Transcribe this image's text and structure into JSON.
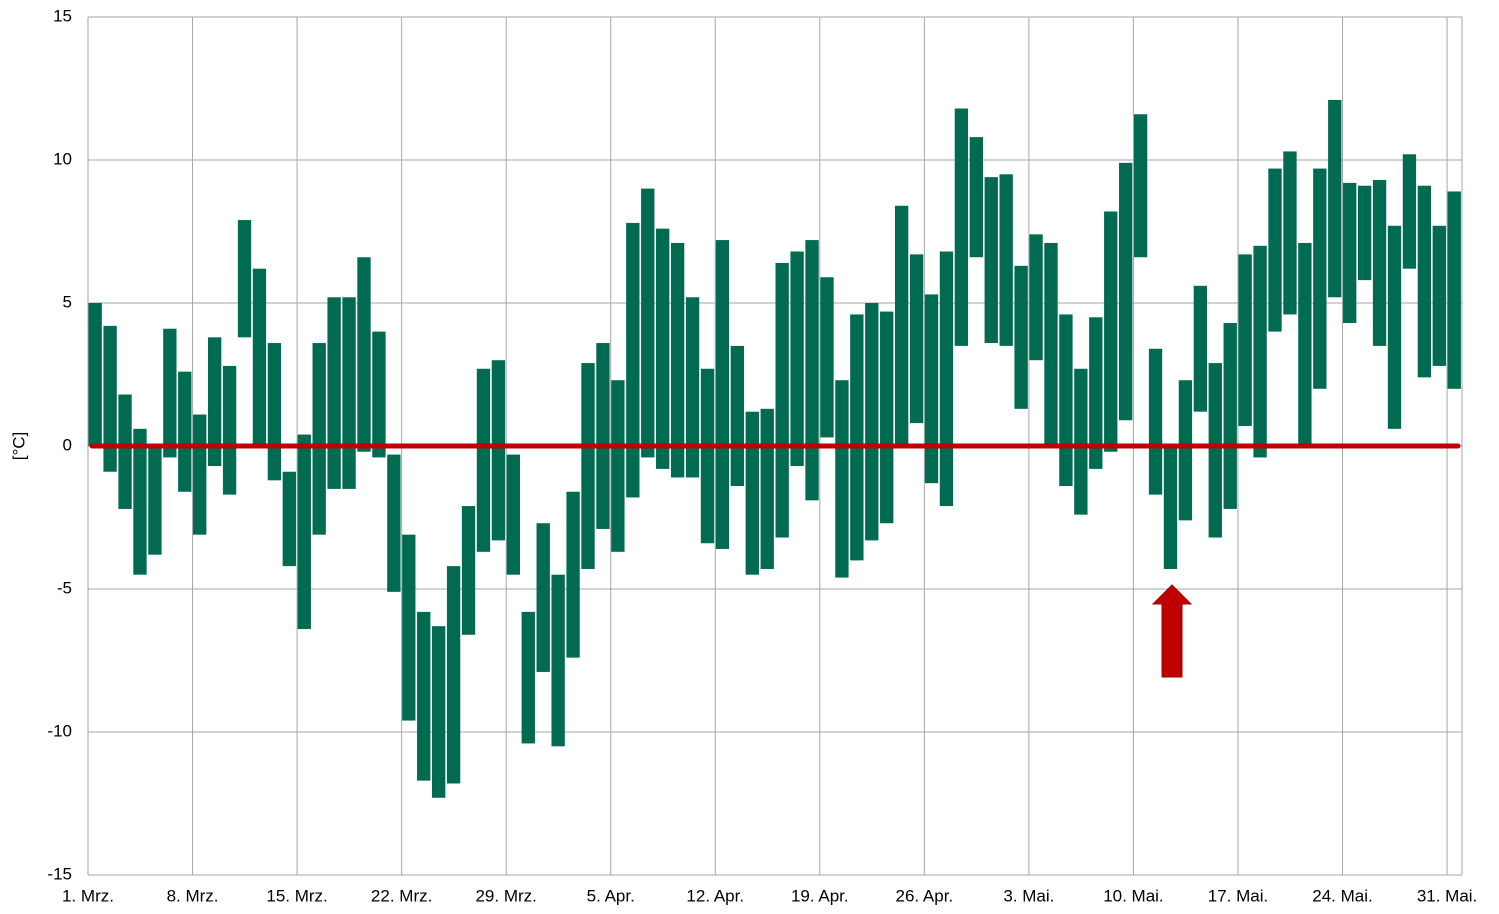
{
  "chart_data": {
    "type": "floating-bar",
    "y_label": "[°C]",
    "categories": [
      "1. Mrz.",
      null,
      null,
      null,
      null,
      null,
      null,
      "8. Mrz.",
      null,
      null,
      null,
      null,
      null,
      null,
      "15. Mrz.",
      null,
      null,
      null,
      null,
      null,
      null,
      "22. Mrz.",
      null,
      null,
      null,
      null,
      null,
      null,
      "29. Mrz.",
      null,
      null,
      null,
      null,
      null,
      null,
      "5. Apr.",
      null,
      null,
      null,
      null,
      null,
      null,
      "12. Apr.",
      null,
      null,
      null,
      null,
      null,
      null,
      "19. Apr.",
      null,
      null,
      null,
      null,
      null,
      null,
      "26. Apr.",
      null,
      null,
      null,
      null,
      null,
      null,
      "3. Mai.",
      null,
      null,
      null,
      null,
      null,
      null,
      "10. Mai.",
      null,
      null,
      null,
      null,
      null,
      null,
      "17. Mai.",
      null,
      null,
      null,
      null,
      null,
      null,
      "24. Mai.",
      null,
      null,
      null,
      null,
      null,
      null,
      "31. Mai."
    ],
    "low": [
      0,
      -0.9,
      -2.2,
      -4.5,
      -3.8,
      -0.4,
      -1.6,
      -3.1,
      -0.7,
      -1.7,
      3.8,
      0,
      -1.2,
      -4.2,
      -6.4,
      -3.1,
      -1.5,
      -1.5,
      -0.2,
      -0.4,
      -5.1,
      -9.6,
      -11.7,
      -12.3,
      -11.8,
      -6.6,
      -3.7,
      -3.3,
      -4.5,
      -10.4,
      -7.9,
      -10.5,
      -7.4,
      -4.3,
      -2.9,
      -3.7,
      -1.8,
      -0.4,
      -0.8,
      -1.1,
      -1.1,
      -3.4,
      -3.6,
      -1.4,
      -4.5,
      -4.3,
      -3.2,
      -0.7,
      -1.9,
      0.3,
      -4.6,
      -4.0,
      -3.3,
      -2.7,
      0,
      0.8,
      -1.3,
      -2.1,
      3.5,
      6.6,
      3.6,
      3.5,
      1.3,
      3.0,
      0,
      -1.4,
      -2.4,
      -0.8,
      -0.2,
      0.9,
      6.6,
      -1.7,
      -4.3,
      -2.6,
      1.2,
      -3.2,
      -2.2,
      0.7,
      -0.4,
      4.0,
      4.6,
      0,
      2.0,
      5.2,
      4.3,
      5.8,
      3.5,
      0.6,
      6.2,
      2.4,
      2.8,
      2.0
    ],
    "high": [
      5.0,
      4.2,
      1.8,
      0.6,
      0,
      4.1,
      2.6,
      1.1,
      3.8,
      2.8,
      7.9,
      6.2,
      3.6,
      -0.9,
      0.4,
      3.6,
      5.2,
      5.2,
      6.6,
      4.0,
      -0.3,
      -3.1,
      -5.8,
      -6.3,
      -4.2,
      -2.1,
      2.7,
      3.0,
      -0.3,
      -5.8,
      -2.7,
      -4.5,
      -1.6,
      2.9,
      3.6,
      2.3,
      7.8,
      9.0,
      7.6,
      7.1,
      5.2,
      2.7,
      7.2,
      3.5,
      1.2,
      1.3,
      6.4,
      6.8,
      7.2,
      5.9,
      2.3,
      4.6,
      5.0,
      4.7,
      8.4,
      6.7,
      5.3,
      6.8,
      11.8,
      10.8,
      9.4,
      9.5,
      6.3,
      7.4,
      7.1,
      4.6,
      2.7,
      4.5,
      8.2,
      9.9,
      11.6,
      3.4,
      0,
      2.3,
      5.6,
      2.9,
      4.3,
      6.7,
      7.0,
      9.7,
      10.3,
      7.1,
      9.7,
      12.1,
      9.2,
      9.1,
      9.3,
      7.7,
      10.2,
      9.1,
      7.7,
      8.9
    ],
    "color": "#006b50",
    "reference_line": {
      "value": 0,
      "color": "#c00000"
    },
    "ylim": [
      -15,
      15
    ],
    "yticks": [
      -15,
      -10,
      -5,
      0,
      5,
      10,
      15
    ],
    "grid": true
  }
}
